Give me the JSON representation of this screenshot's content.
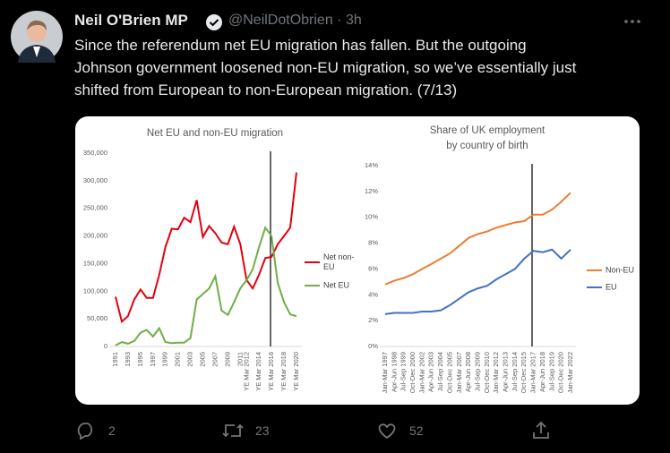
{
  "tweet": {
    "name": "Neil O'Brien MP",
    "handle_time": "@NeilDotObrien · 3h",
    "text_lines": [
      "Since the referendum net EU migration has fallen.  But the outgoing",
      "Johnson government loosened non-EU migration, so we’ve essentially just",
      "shifted from European to non-European migration. (7/13)"
    ],
    "replies": 2,
    "retweets": 23,
    "likes": 52
  },
  "charts": [
    {
      "type": "line",
      "title": "Net EU and non-EU migration",
      "categories": [
        "1991",
        null,
        "1993",
        null,
        "1995",
        null,
        "1997",
        null,
        "1999",
        null,
        "2001",
        null,
        "2003",
        null,
        "2005",
        null,
        "2007",
        null,
        "2009",
        null,
        "2011",
        "YE Mar 2012",
        null,
        "YE Mar 2014",
        null,
        "YE Mar 2016",
        null,
        "YE Mar 2018",
        null,
        "YE Mar 2020"
      ],
      "series": [
        {
          "name": "Net non-EU",
          "color": "#e3000f",
          "values": [
            90000,
            45000,
            55000,
            85000,
            103000,
            88000,
            88000,
            130000,
            180000,
            213000,
            212000,
            233000,
            225000,
            265000,
            198000,
            218000,
            205000,
            188000,
            185000,
            217000,
            185000,
            120000,
            105000,
            130000,
            160000,
            162000,
            185000,
            200000,
            215000,
            315000
          ]
        },
        {
          "name": "Net EU",
          "color": "#70ad47",
          "values": [
            2000,
            8000,
            5000,
            10000,
            25000,
            30000,
            18000,
            33000,
            8000,
            6000,
            7000,
            7000,
            15000,
            85000,
            95000,
            105000,
            127000,
            65000,
            57000,
            80000,
            105000,
            120000,
            140000,
            180000,
            215000,
            200000,
            115000,
            80000,
            58000,
            55000
          ]
        }
      ],
      "ylim": [
        0,
        350000
      ],
      "yticks": [
        0,
        {
          "value": 50000,
          "label": "50,000"
        },
        {
          "value": 100000,
          "label": "100,000"
        },
        {
          "value": 150000,
          "label": "150,000"
        },
        {
          "value": 200000,
          "label": "200,000"
        },
        {
          "value": 250000,
          "label": "250,000"
        },
        {
          "value": 300000,
          "label": "300,000"
        },
        {
          "value": 350000,
          "label": "350,000"
        }
      ]
    },
    {
      "type": "line",
      "title": [
        "Share of UK employment",
        "by country of birth"
      ],
      "categories": [
        "Jan-Mar 1997",
        "Apr-Jun 1998",
        "Jul-Sep 1999",
        "Oct-Dec 2000",
        "Jan-Mar 2002",
        "Apr-Jun 2003",
        "Jul-Sep 2004",
        "Oct-Dec 2005",
        "Jan-Mar 2007",
        "Apr-Jun 2008",
        "Jul-Sep 2009",
        "Oct-Dec 2010",
        "Jan-Mar 2012",
        "Apr-Jun 2013",
        "Jul-Sep 2014",
        "Oct-Dec 2015",
        "Jan-Mar 2017",
        "Apr-Jun 2018",
        "Jul-Sep 2019",
        "Oct-Dec 2020",
        "Jan-Mar 2022"
      ],
      "series": [
        {
          "name": "Non-EU",
          "color": "#ed7d31",
          "values": [
            4.8,
            5.1,
            5.3,
            5.6,
            6.0,
            6.4,
            6.8,
            7.2,
            7.8,
            8.4,
            8.7,
            8.9,
            9.2,
            9.4,
            9.6,
            9.7,
            10.2,
            10.2,
            10.6,
            11.2,
            11.9
          ]
        },
        {
          "name": "EU",
          "color": "#4472c4",
          "values": [
            2.5,
            2.6,
            2.6,
            2.6,
            2.7,
            2.7,
            2.8,
            3.2,
            3.7,
            4.2,
            4.5,
            4.7,
            5.2,
            5.6,
            6.0,
            6.8,
            7.4,
            7.3,
            7.5,
            6.8,
            7.5
          ]
        }
      ],
      "ylim": [
        0,
        14
      ],
      "yticks": [
        {
          "value": 0,
          "label": "0%"
        },
        {
          "value": 2,
          "label": "2%"
        },
        {
          "value": 4,
          "label": "4%"
        },
        {
          "value": 6,
          "label": "6%"
        },
        {
          "value": 8,
          "label": "8%"
        },
        {
          "value": 10,
          "label": "10%"
        },
        {
          "value": 12,
          "label": "12%"
        },
        {
          "value": 14,
          "label": "14%"
        }
      ]
    }
  ]
}
